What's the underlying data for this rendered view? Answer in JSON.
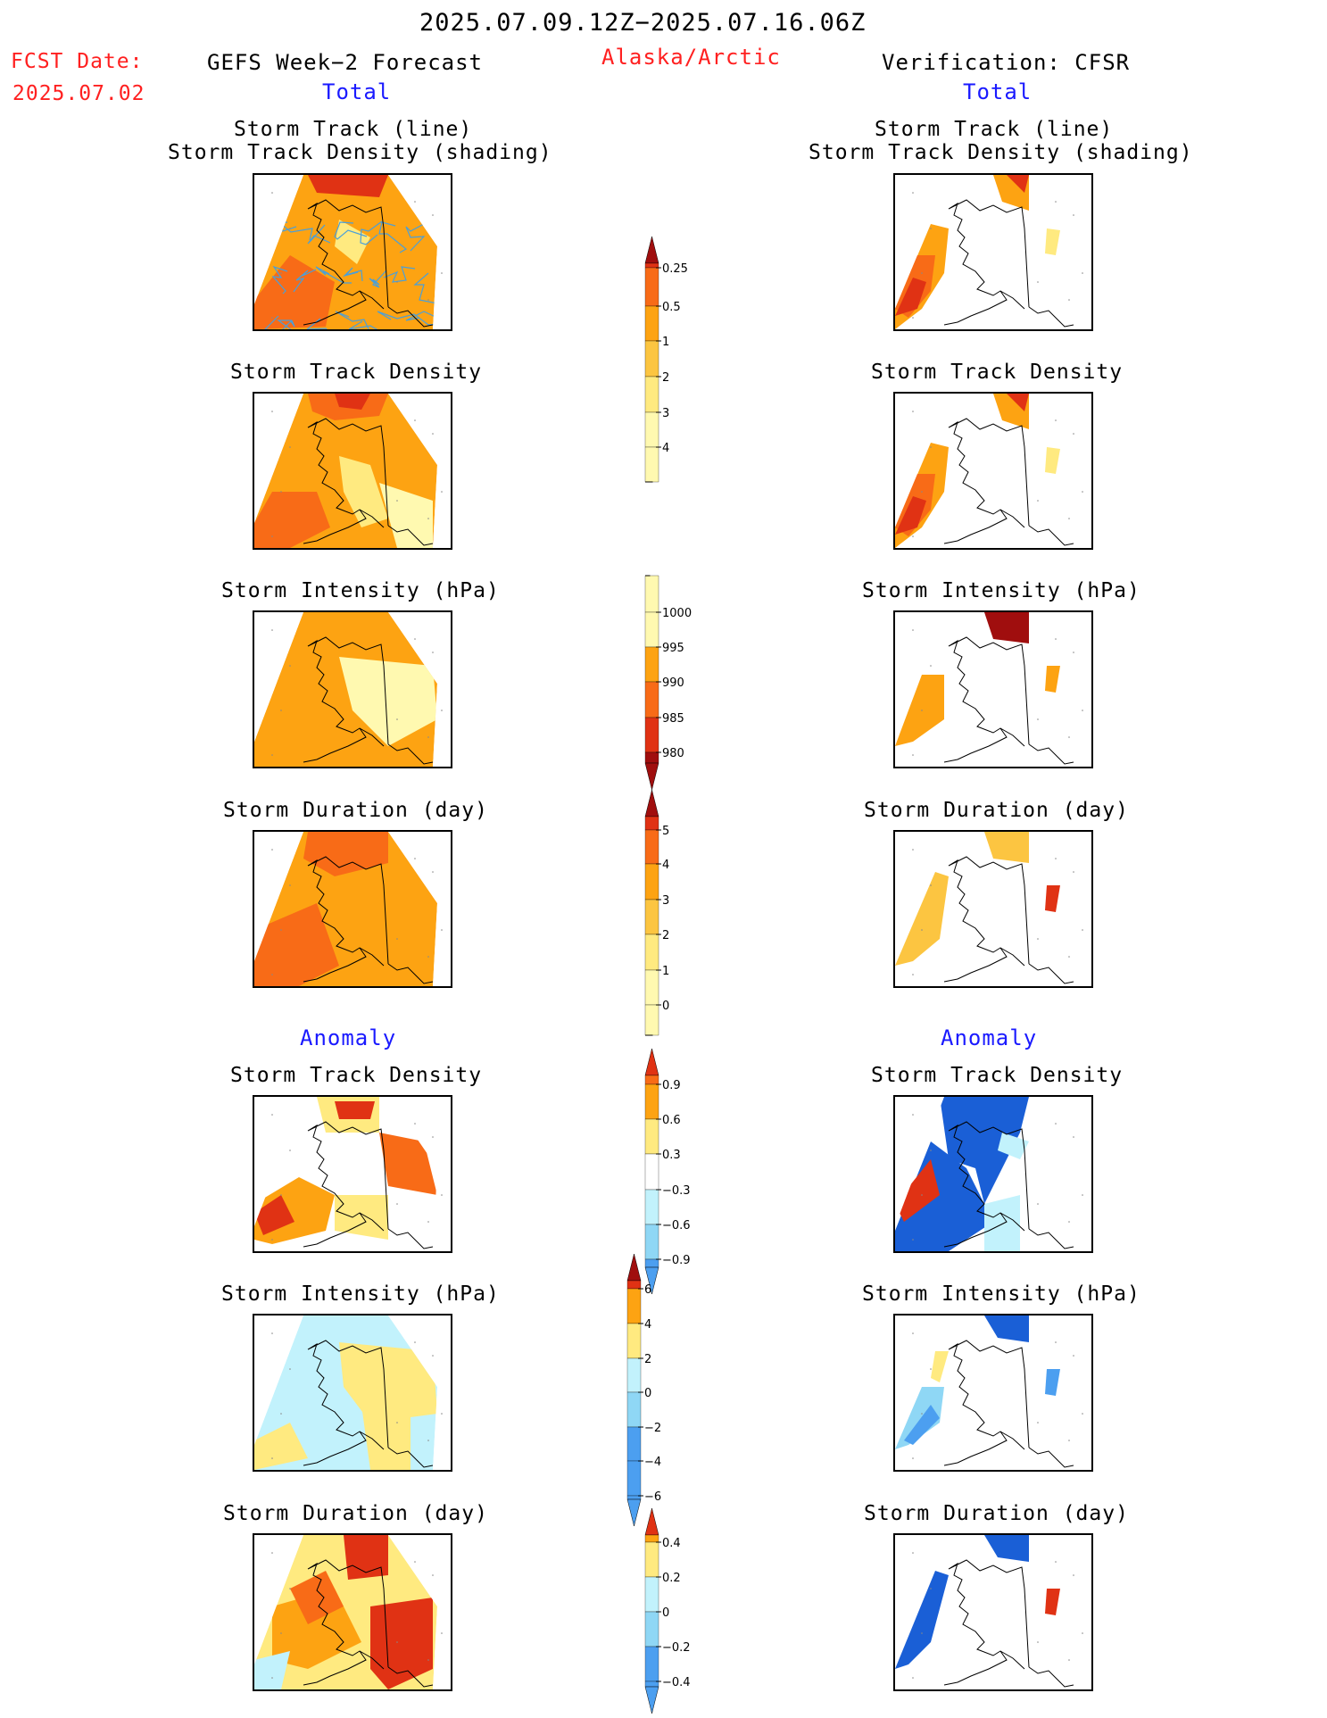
{
  "header": {
    "period": "2025.07.09.12Z−2025.07.16.06Z",
    "fcst_label": "FCST Date:",
    "fcst_date": "2025.07.02",
    "left_title": "GEFS Week−2 Forecast",
    "region": "Alaska/Arctic",
    "right_title": "Verification: CFSR",
    "total_left": "Total",
    "total_right": "Total",
    "anomaly_left": "Anomaly",
    "anomaly_right": "Anomaly"
  },
  "panels": {
    "track_line_1": "Storm Track (line)",
    "track_line_2": "Storm Track Density (shading)",
    "track_density": "Storm Track Density",
    "intensity": "Storm Intensity (hPa)",
    "duration": "Storm Duration (day)"
  },
  "colors": {
    "y1": "#fff9b0",
    "y2": "#ffea80",
    "y3": "#fcc541",
    "o1": "#fda312",
    "o2": "#f86b17",
    "r1": "#e03214",
    "r2": "#a00e0e",
    "b1": "#c2f2fc",
    "b2": "#8fd7f5",
    "b3": "#4c9ff0",
    "b4": "#1a5fd6",
    "track": "#4a9fd9"
  },
  "chart_data": [
    {
      "type": "heatmap",
      "name": "Total storm track density / storm track (forecast & verification)",
      "colorbar_ticks": [
        "0.25",
        "0.5",
        "1",
        "2",
        "3",
        "4"
      ]
    },
    {
      "type": "heatmap",
      "name": "Total storm intensity (hPa)",
      "colorbar_ticks": [
        "1000",
        "995",
        "990",
        "985",
        "980"
      ]
    },
    {
      "type": "heatmap",
      "name": "Total storm duration (day)",
      "colorbar_ticks": [
        "0",
        "1",
        "2",
        "3",
        "4",
        "5"
      ]
    },
    {
      "type": "heatmap",
      "name": "Anomaly storm track density",
      "colorbar_ticks": [
        "0.9",
        "0.6",
        "0.3",
        "−0.3",
        "−0.6",
        "−0.9"
      ]
    },
    {
      "type": "heatmap",
      "name": "Anomaly storm intensity (hPa)",
      "colorbar_ticks": [
        "6",
        "4",
        "2",
        "0",
        "−2",
        "−4",
        "−6"
      ]
    },
    {
      "type": "heatmap",
      "name": "Anomaly storm duration (day)",
      "colorbar_ticks": [
        "0.4",
        "0.2",
        "0",
        "−0.2",
        "−0.4"
      ]
    }
  ]
}
